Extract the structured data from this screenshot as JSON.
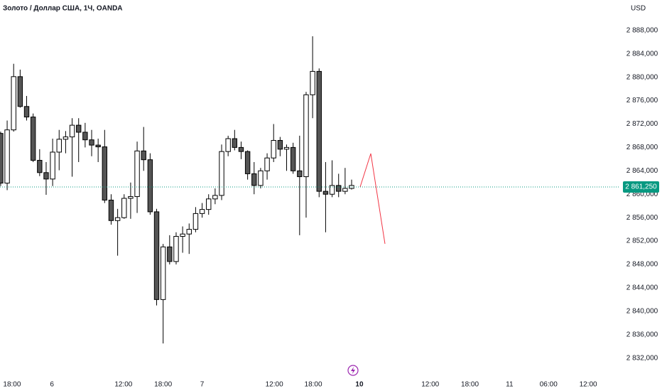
{
  "chart_data": {
    "type": "candlestick",
    "title": "Золото / Доллар США, 1Ч, OANDA",
    "currency": "USD",
    "open": [
      2870.4,
      2861.9,
      2871.0,
      2880.1,
      2875.0,
      2873.2,
      2865.8,
      2863.7,
      2862.6,
      2867.2,
      2869.4,
      2869.8,
      2871.8,
      2870.6,
      2869.3,
      2868.4,
      2868.1,
      2859.0,
      2855.5,
      2856.0,
      2859.3,
      2859.6,
      2867.4,
      2865.9,
      2857.0,
      2842.0,
      2851.0,
      2848.5,
      2852.8,
      2853.2,
      2854.0,
      2856.7,
      2857.4,
      2859.2,
      2859.8,
      2867.3,
      2869.5,
      2868.0,
      2867.3,
      2863.5,
      2861.5,
      2864.0,
      2866.2,
      2869.2,
      2867.7,
      2868.0,
      2864.0,
      2863.0,
      2877.0,
      2881.0,
      2860.5,
      2860.0,
      2861.5,
      2860.5,
      2861.0
    ],
    "high": [
      2870.7,
      2872.6,
      2882.3,
      2881.3,
      2876.8,
      2873.8,
      2867.7,
      2865.5,
      2869.5,
      2871.0,
      2870.8,
      2873.0,
      2873.0,
      2872.2,
      2871.0,
      2869.5,
      2871.0,
      2860.0,
      2857.5,
      2860.0,
      2862.0,
      2869.0,
      2871.5,
      2867.0,
      2857.5,
      2851.5,
      2853.0,
      2853.5,
      2854.5,
      2855.0,
      2857.8,
      2858.5,
      2860.0,
      2861.0,
      2868.5,
      2870.0,
      2871.0,
      2869.0,
      2867.5,
      2865.5,
      2864.5,
      2867.0,
      2872.0,
      2869.8,
      2868.5,
      2868.8,
      2870.0,
      2877.5,
      2887.0,
      2881.5,
      2865.5,
      2865.8,
      2863.5,
      2864.5,
      2862.5
    ],
    "low": [
      2861.4,
      2860.7,
      2870.7,
      2874.8,
      2872.6,
      2865.5,
      2863.1,
      2859.9,
      2861.4,
      2864.1,
      2867.0,
      2863.0,
      2865.5,
      2868.0,
      2866.5,
      2865.5,
      2858.5,
      2854.8,
      2849.5,
      2855.8,
      2855.8,
      2856.8,
      2864.0,
      2856.5,
      2841.0,
      2834.5,
      2848.0,
      2848.0,
      2850.0,
      2849.8,
      2853.5,
      2856.0,
      2856.5,
      2858.3,
      2859.0,
      2866.5,
      2867.5,
      2866.0,
      2862.5,
      2860.0,
      2861.0,
      2862.5,
      2865.5,
      2866.5,
      2864.0,
      2863.5,
      2853.0,
      2856.0,
      2873.0,
      2859.5,
      2853.5,
      2859.5,
      2859.5,
      2860.0,
      2860.8
    ],
    "close": [
      2861.9,
      2871.0,
      2880.1,
      2875.0,
      2873.2,
      2865.8,
      2863.7,
      2862.6,
      2867.2,
      2869.4,
      2869.8,
      2871.8,
      2870.6,
      2869.3,
      2868.4,
      2868.1,
      2859.0,
      2855.5,
      2856.0,
      2859.3,
      2859.6,
      2867.4,
      2865.9,
      2857.0,
      2842.0,
      2851.0,
      2848.5,
      2852.8,
      2853.2,
      2854.0,
      2856.7,
      2857.4,
      2859.2,
      2859.8,
      2867.3,
      2869.5,
      2868.0,
      2867.3,
      2863.5,
      2861.5,
      2864.0,
      2866.2,
      2869.2,
      2867.7,
      2868.0,
      2864.0,
      2863.0,
      2877.0,
      2881.0,
      2860.5,
      2860.0,
      2861.5,
      2860.5,
      2861.0,
      2861.5
    ],
    "up_color": "#ffffff",
    "down_color": "#555555",
    "border_color": "#000000",
    "xlim": [
      -0.1,
      95.2
    ],
    "xticks": [
      {
        "value": 1.75,
        "label": "18:00"
      },
      {
        "value": 7.9,
        "label": "6"
      },
      {
        "value": 18.9,
        "label": "12:00"
      },
      {
        "value": 25.0,
        "label": "18:00"
      },
      {
        "value": 31.0,
        "label": "7"
      },
      {
        "value": 42.1,
        "label": "12:00"
      },
      {
        "value": 48.1,
        "label": "18:00"
      },
      {
        "value": 55.2,
        "label": "10"
      },
      {
        "value": 66.1,
        "label": "12:00"
      },
      {
        "value": 72.2,
        "label": "18:00"
      },
      {
        "value": 78.3,
        "label": "11"
      },
      {
        "value": 84.3,
        "label": "06:00"
      },
      {
        "value": 90.4,
        "label": "12:00"
      }
    ],
    "ylim": [
      2828.8,
      2893.2
    ],
    "yticks": [
      {
        "value": 2888,
        "label": "2 888,000"
      },
      {
        "value": 2884,
        "label": "2 884,000"
      },
      {
        "value": 2880,
        "label": "2 880,000"
      },
      {
        "value": 2876,
        "label": "2 876,000"
      },
      {
        "value": 2872,
        "label": "2 872,000"
      },
      {
        "value": 2868,
        "label": "2 868,000"
      },
      {
        "value": 2864,
        "label": "2 864,000"
      },
      {
        "value": 2860,
        "label": "2 860,000"
      },
      {
        "value": 2856,
        "label": "2 856,000"
      },
      {
        "value": 2852,
        "label": "2 852,000"
      },
      {
        "value": 2848,
        "label": "2 848,000"
      },
      {
        "value": 2844,
        "label": "2 844,000"
      },
      {
        "value": 2840,
        "label": "2 840,000"
      },
      {
        "value": 2836,
        "label": "2 836,000"
      },
      {
        "value": 2832,
        "label": "2 832,000"
      }
    ],
    "last_price": {
      "value": 2861.25,
      "label": "2 861,250",
      "color": "#089981"
    }
  }
}
